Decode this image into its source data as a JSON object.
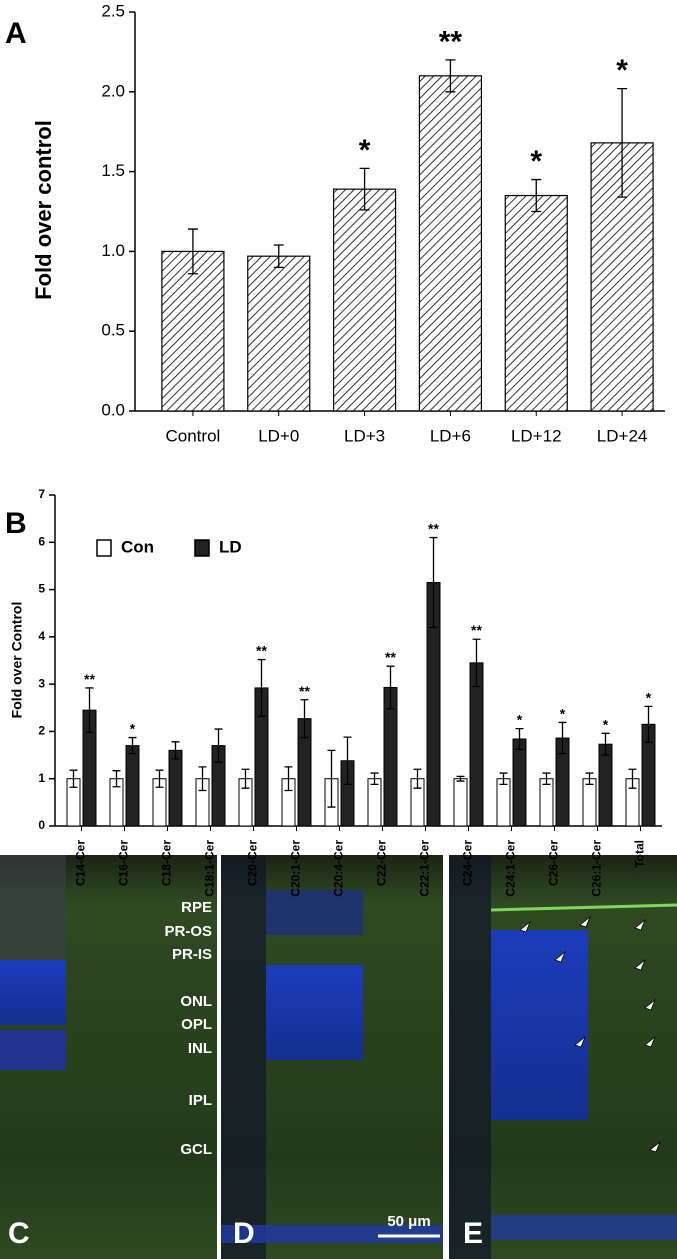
{
  "chart_data": [
    {
      "type": "bar",
      "ylabel": "Fold over control",
      "categories": [
        "Control",
        "LD+0",
        "LD+3",
        "LD+6",
        "LD+12",
        "LD+24"
      ],
      "values": [
        1.0,
        0.97,
        1.39,
        2.1,
        1.35,
        1.68
      ],
      "errors": [
        0.14,
        0.07,
        0.13,
        0.1,
        0.1,
        0.34
      ],
      "annotations": [
        null,
        null,
        "*",
        "**",
        "*",
        "*"
      ],
      "pattern": "hatch",
      "color": "#000000",
      "ylim": [
        0,
        2.5
      ],
      "yticks": [
        {
          "value": 0,
          "label": "0.0"
        },
        0.5,
        {
          "value": 1,
          "label": "1.0"
        },
        1.5,
        {
          "value": 2,
          "label": "2.0"
        },
        2.5
      ]
    },
    {
      "type": "grouped-bar",
      "ylabel": "Fold over Control",
      "legend": "upper left",
      "categories": [
        "C14-Cer",
        "C16-Cer",
        "C18-Cer",
        "C18:1-Cer",
        "C20-Cer",
        "C20:1-Cer",
        "C20:4-Cer",
        "C22-Cer",
        "C22:1-Cer",
        "C24-Cer",
        "C24:1-Cer",
        "C26-Cer",
        "C26:1-Cer",
        "Total"
      ],
      "series": [
        {
          "name": "Con",
          "color": "#ffffff",
          "values": [
            1,
            1,
            1,
            1,
            1,
            1,
            1,
            1,
            1,
            1,
            1,
            1,
            1,
            1
          ],
          "errors": [
            0.18,
            0.17,
            0.18,
            0.25,
            0.2,
            0.25,
            0.6,
            0.12,
            0.2,
            0.05,
            0.12,
            0.12,
            0.12,
            0.2
          ]
        },
        {
          "name": "LD",
          "color": "#222222",
          "values": [
            2.45,
            1.7,
            1.6,
            1.7,
            2.92,
            2.27,
            1.38,
            2.93,
            5.15,
            3.45,
            1.84,
            1.86,
            1.73,
            2.15
          ],
          "errors": [
            0.47,
            0.17,
            0.18,
            0.35,
            0.6,
            0.4,
            0.5,
            0.45,
            0.95,
            0.5,
            0.22,
            0.33,
            0.23,
            0.38
          ]
        }
      ],
      "annotations": [
        "**",
        "*",
        null,
        null,
        "**",
        "**",
        null,
        "**",
        "**",
        "**",
        "*",
        "*",
        "*",
        "*"
      ],
      "ylim": [
        0,
        7
      ],
      "yticks": [
        0,
        1,
        2,
        3,
        4,
        5,
        6,
        7
      ]
    }
  ],
  "figure": {
    "panel_labels": [
      "A",
      "B"
    ],
    "micrographs": {
      "labels": [
        "C",
        "D",
        "E"
      ],
      "layers": [
        "RPE",
        "PR-OS",
        "PR-IS",
        "ONL",
        "OPL",
        "INL",
        "IPL",
        "GCL"
      ],
      "scale_bar": "50 μm"
    }
  }
}
